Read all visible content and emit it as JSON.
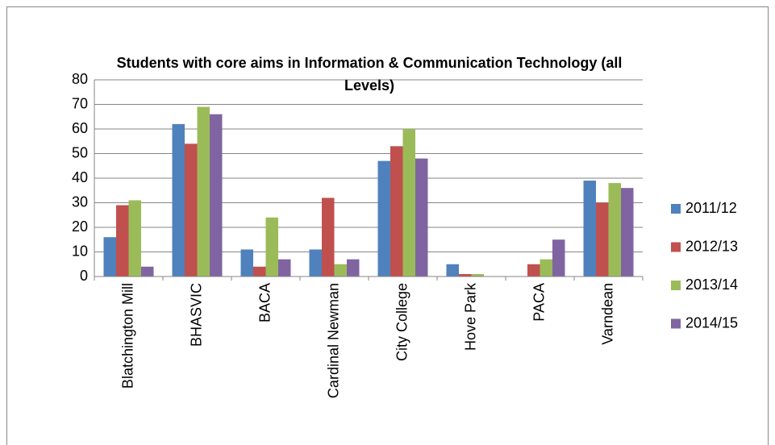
{
  "chart_data": {
    "type": "bar",
    "title": "Students with core aims in Information & Communication Technology (all Levels)",
    "categories": [
      "Blatchington Mill",
      "BHASVIC",
      "BACA",
      "Cardinal Newman",
      "City College",
      "Hove Park",
      "PACA",
      "Varndean"
    ],
    "series": [
      {
        "name": "2011/12",
        "color": "#4f81bd",
        "values": [
          16,
          62,
          11,
          11,
          47,
          5,
          0,
          39
        ]
      },
      {
        "name": "2012/13",
        "color": "#c0504d",
        "values": [
          29,
          54,
          4,
          32,
          53,
          1,
          5,
          30
        ]
      },
      {
        "name": "2013/14",
        "color": "#9bbb59",
        "values": [
          31,
          69,
          24,
          5,
          60,
          1,
          7,
          38
        ]
      },
      {
        "name": "2014/15",
        "color": "#8064a2",
        "values": [
          4,
          66,
          7,
          7,
          48,
          0,
          15,
          36
        ]
      }
    ],
    "ylim": [
      0,
      80
    ],
    "yticks": [
      0,
      10,
      20,
      30,
      40,
      50,
      60,
      70,
      80
    ],
    "grid": true,
    "legend": "right"
  }
}
